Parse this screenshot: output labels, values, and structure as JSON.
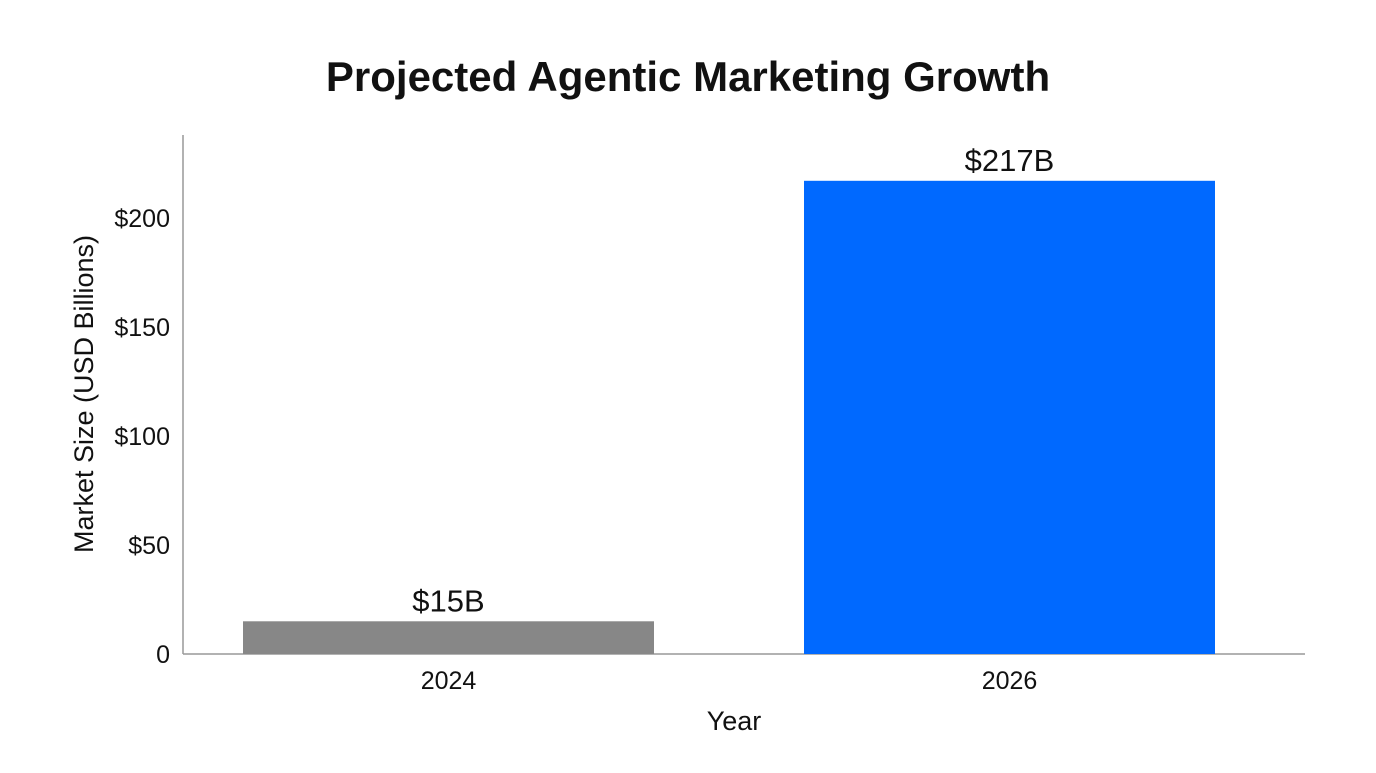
{
  "chart_data": {
    "type": "bar",
    "title": "Projected Agentic Marketing Growth",
    "xlabel": "Year",
    "ylabel": "Market Size (USD Billions)",
    "categories": [
      "2024",
      "2026"
    ],
    "values": [
      15,
      217
    ],
    "data_labels": [
      "$15B",
      "$217B"
    ],
    "bar_colors": [
      "#878787",
      "#0069FF"
    ],
    "yticks": [
      0,
      50,
      100,
      150,
      200
    ],
    "ytick_labels": [
      "0",
      "$50",
      "$100",
      "$150",
      "$200"
    ],
    "ylim": [
      0,
      238
    ],
    "grid": false,
    "legend": "none"
  }
}
